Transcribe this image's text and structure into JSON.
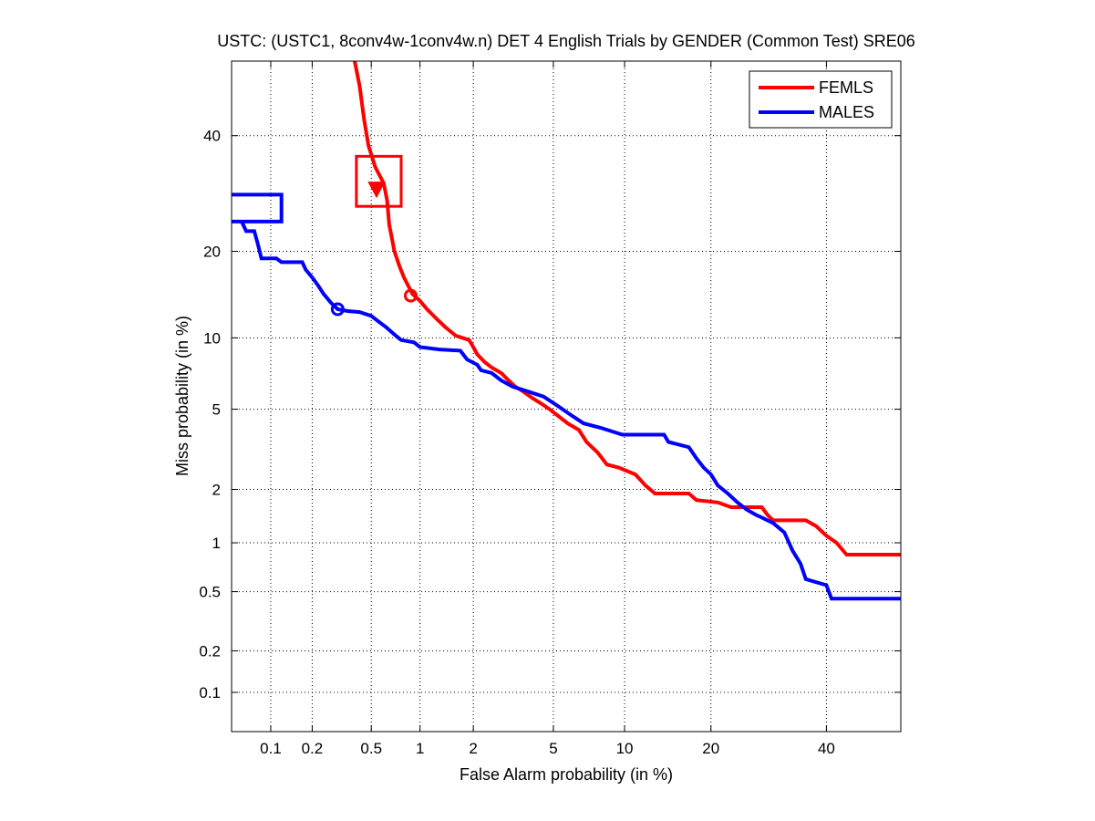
{
  "chart_data": {
    "type": "line",
    "title": "USTC: (USTC1, 8conv4w-1conv4w.n) DET 4 English Trials by GENDER (Common Test) SRE06",
    "xlabel": "False Alarm probability (in %)",
    "ylabel": "Miss probability (in %)",
    "x_scale": "probit",
    "y_scale": "probit",
    "xlim": [
      0.05,
      55
    ],
    "ylim": [
      0.05,
      55
    ],
    "grid": true,
    "legend_position": "top-right",
    "x_ticks": [
      0.1,
      0.2,
      0.5,
      1,
      2,
      5,
      10,
      20,
      40
    ],
    "x_tick_labels": [
      "0.1",
      "0.2",
      "0.5",
      "1",
      "2",
      "5",
      "10",
      "20",
      "40"
    ],
    "y_ticks": [
      0.1,
      0.2,
      0.5,
      1,
      2,
      5,
      10,
      20,
      40
    ],
    "y_tick_labels": [
      "0.1",
      "0.2",
      "0.5",
      "1",
      "2",
      "5",
      "10",
      "20",
      "40"
    ],
    "series": [
      {
        "name": "FEMLS",
        "color": "#ff0000",
        "points": [
          [
            0.39,
            55
          ],
          [
            0.42,
            50
          ],
          [
            0.45,
            43
          ],
          [
            0.48,
            38
          ],
          [
            0.53,
            34
          ],
          [
            0.6,
            31
          ],
          [
            0.63,
            28
          ],
          [
            0.65,
            24
          ],
          [
            0.7,
            20
          ],
          [
            0.75,
            18
          ],
          [
            0.8,
            16.5
          ],
          [
            0.9,
            14.5
          ],
          [
            1.0,
            13.7
          ],
          [
            1.1,
            12.8
          ],
          [
            1.25,
            11.8
          ],
          [
            1.4,
            11
          ],
          [
            1.6,
            10.2
          ],
          [
            1.9,
            9.8
          ],
          [
            2.0,
            9.2
          ],
          [
            2.1,
            8.6
          ],
          [
            2.3,
            8.0
          ],
          [
            2.5,
            7.6
          ],
          [
            2.8,
            7.2
          ],
          [
            3.0,
            6.8
          ],
          [
            3.3,
            6.3
          ],
          [
            3.6,
            6.0
          ],
          [
            4.0,
            5.6
          ],
          [
            4.4,
            5.3
          ],
          [
            4.8,
            5.0
          ],
          [
            5.2,
            4.7
          ],
          [
            5.8,
            4.3
          ],
          [
            6.5,
            4.0
          ],
          [
            7.0,
            3.5
          ],
          [
            7.8,
            3.1
          ],
          [
            8.5,
            2.7
          ],
          [
            9.5,
            2.6
          ],
          [
            11.0,
            2.4
          ],
          [
            12.0,
            2.1
          ],
          [
            13.0,
            1.9
          ],
          [
            17.0,
            1.9
          ],
          [
            18.0,
            1.75
          ],
          [
            21.0,
            1.7
          ],
          [
            23.0,
            1.6
          ],
          [
            28.0,
            1.6
          ],
          [
            29.0,
            1.45
          ],
          [
            30.0,
            1.35
          ],
          [
            36.0,
            1.35
          ],
          [
            38.0,
            1.25
          ],
          [
            40.0,
            1.1
          ],
          [
            42.0,
            1.0
          ],
          [
            44.0,
            0.85
          ],
          [
            55.0,
            0.85
          ]
        ]
      },
      {
        "name": "MALES",
        "color": "#0000ff",
        "points": [
          [
            0.05,
            29
          ],
          [
            0.12,
            29
          ],
          [
            0.12,
            24.5
          ],
          [
            0.05,
            24.5
          ],
          [
            0.06,
            24.5
          ],
          [
            0.065,
            23
          ],
          [
            0.075,
            23
          ],
          [
            0.08,
            21
          ],
          [
            0.085,
            19
          ],
          [
            0.11,
            19
          ],
          [
            0.12,
            18.5
          ],
          [
            0.17,
            18.5
          ],
          [
            0.18,
            17.5
          ],
          [
            0.2,
            16.5
          ],
          [
            0.22,
            15.5
          ],
          [
            0.24,
            14.5
          ],
          [
            0.27,
            13.5
          ],
          [
            0.3,
            12.8
          ],
          [
            0.35,
            12.6
          ],
          [
            0.42,
            12.5
          ],
          [
            0.5,
            12.1
          ],
          [
            0.55,
            11.6
          ],
          [
            0.62,
            11
          ],
          [
            0.7,
            10.3
          ],
          [
            0.77,
            9.8
          ],
          [
            0.92,
            9.6
          ],
          [
            1.0,
            9.2
          ],
          [
            1.3,
            9.0
          ],
          [
            1.7,
            8.9
          ],
          [
            1.85,
            8.2
          ],
          [
            2.1,
            7.8
          ],
          [
            2.2,
            7.4
          ],
          [
            2.5,
            7.2
          ],
          [
            2.8,
            6.7
          ],
          [
            3.2,
            6.3
          ],
          [
            3.8,
            6.0
          ],
          [
            4.5,
            5.7
          ],
          [
            5.2,
            5.2
          ],
          [
            6.0,
            4.7
          ],
          [
            6.8,
            4.3
          ],
          [
            8.0,
            4.1
          ],
          [
            9.8,
            3.8
          ],
          [
            14.0,
            3.8
          ],
          [
            14.5,
            3.5
          ],
          [
            17.0,
            3.3
          ],
          [
            18.0,
            2.9
          ],
          [
            19.0,
            2.6
          ],
          [
            20.0,
            2.4
          ],
          [
            21.0,
            2.1
          ],
          [
            22.5,
            1.9
          ],
          [
            24.0,
            1.7
          ],
          [
            25.5,
            1.55
          ],
          [
            27.0,
            1.45
          ],
          [
            28.0,
            1.4
          ],
          [
            30.0,
            1.3
          ],
          [
            32.0,
            1.15
          ],
          [
            33.5,
            0.9
          ],
          [
            35.0,
            0.75
          ],
          [
            36.0,
            0.6
          ],
          [
            40.0,
            0.55
          ],
          [
            41.0,
            0.45
          ],
          [
            55.0,
            0.45
          ]
        ]
      }
    ],
    "markers": [
      {
        "series": "FEMLS",
        "shape": "triangle-down",
        "x": 0.54,
        "y": 30,
        "color": "#ff0000"
      },
      {
        "series": "FEMLS",
        "shape": "circle",
        "x": 0.88,
        "y": 14.3,
        "color": "#ff0000"
      },
      {
        "series": "MALES",
        "shape": "circle",
        "x": 0.3,
        "y": 12.8,
        "color": "#0000ff"
      }
    ],
    "boxes": [
      {
        "series": "FEMLS",
        "x_range": [
          0.4,
          0.77
        ],
        "y_range": [
          27,
          36
        ],
        "color": "#ff0000"
      }
    ]
  }
}
